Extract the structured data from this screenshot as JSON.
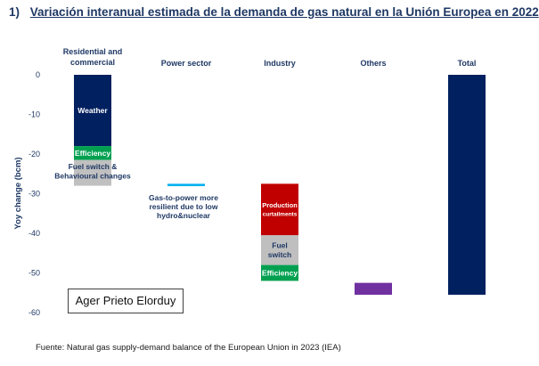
{
  "header": {
    "number": "1)",
    "title": "Variación interanual estimada de la demanda de gas natural en la Unión Europea en 2022"
  },
  "chart_data": {
    "type": "bar",
    "title": "",
    "ylabel": "Yoy change (bcm)",
    "xlabel": "",
    "ylim": [
      -60,
      0
    ],
    "yticks": [
      0,
      -10,
      -20,
      -30,
      -40,
      -50,
      -60
    ],
    "grid": false,
    "legend": "none",
    "categories": [
      "Residential and commercial",
      "Power sector",
      "Industry",
      "Others",
      "Total"
    ],
    "segments": [
      {
        "category": "Residential and commercial",
        "label": "Weather",
        "y0": 0,
        "y1": -18,
        "color": "#002060",
        "text_color": "#ffffff"
      },
      {
        "category": "Residential and commercial",
        "label": "Efficiency",
        "y0": -18,
        "y1": -21.5,
        "color": "#00a050",
        "text_color": "#ffffff"
      },
      {
        "category": "Residential and commercial",
        "label": "Fuel switch & Behavioural changes",
        "y0": -21.5,
        "y1": -28,
        "color": "#c0c0c0",
        "text_color": "#1f3864"
      },
      {
        "category": "Power sector",
        "label": "",
        "y0": -27.5,
        "y1": -28.1,
        "color": "#00b0f0",
        "text_color": "#1f3864"
      },
      {
        "category": "Industry",
        "label": "Production curtailments",
        "y0": -27.5,
        "y1": -40.5,
        "color": "#c00000",
        "text_color": "#ffffff"
      },
      {
        "category": "Industry",
        "label": "Fuel switch",
        "y0": -40.5,
        "y1": -48,
        "color": "#bfbfbf",
        "text_color": "#1f3864"
      },
      {
        "category": "Industry",
        "label": "Efficiency",
        "y0": -48,
        "y1": -52,
        "color": "#00a050",
        "text_color": "#ffffff"
      },
      {
        "category": "Others",
        "label": "",
        "y0": -52.5,
        "y1": -55.5,
        "color": "#7030a0",
        "text_color": "#ffffff"
      },
      {
        "category": "Total",
        "label": "",
        "y0": 0,
        "y1": -55.5,
        "color": "#002060",
        "text_color": "#ffffff"
      }
    ],
    "annotations": [
      {
        "category": "Power sector",
        "text": "Gas-to-power more resilient due to low hydro&nuclear",
        "y": -33
      }
    ]
  },
  "author": "Ager Prieto Elorduy",
  "source": "Fuente: Natural gas supply-demand balance of the European Union in 2023 (IEA)"
}
